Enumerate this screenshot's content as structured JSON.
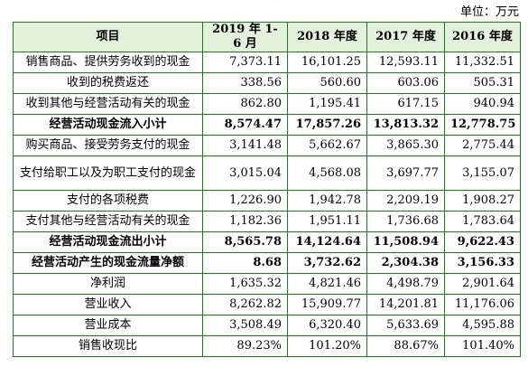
{
  "unit": "单位：万元",
  "headers": [
    "项目",
    "2019 年 1-6 月",
    "2018 年度",
    "2017 年度",
    "2016 年度"
  ],
  "rows": [
    {
      "label": "销售商品、提供劳务收到的现金",
      "values": [
        "7,373.11",
        "16,101.25",
        "12,593.11",
        "11,332.51"
      ],
      "bold": false
    },
    {
      "label": "收到的税费返还",
      "values": [
        "338.56",
        "560.60",
        "603.06",
        "505.31"
      ],
      "bold": false
    },
    {
      "label": "收到其他与经营活动有关的现金",
      "values": [
        "862.80",
        "1,195.41",
        "617.15",
        "940.94"
      ],
      "bold": false
    },
    {
      "label": "经营活动现金流入小计",
      "values": [
        "8,574.47",
        "17,857.26",
        "13,813.32",
        "12,778.75"
      ],
      "bold": true
    },
    {
      "label": "购买商品、接受劳务支付的现金",
      "values": [
        "3,141.48",
        "5,662.67",
        "3,865.30",
        "2,775.44"
      ],
      "bold": false
    },
    {
      "label": "支付给职工以及为职工支付的现金",
      "values": [
        "3,015.04",
        "4,568.08",
        "3,697.77",
        "3,155.07"
      ],
      "bold": false,
      "tall": true
    },
    {
      "label": "支付的各项税费",
      "values": [
        "1,226.90",
        "1,942.78",
        "2,209.19",
        "1,908.27"
      ],
      "bold": false
    },
    {
      "label": "支付其他与经营活动有关的现金",
      "values": [
        "1,182.36",
        "1,951.11",
        "1,736.68",
        "1,783.64"
      ],
      "bold": false
    },
    {
      "label": "经营活动现金流出小计",
      "values": [
        "8,565.78",
        "14,124.64",
        "11,508.94",
        "9,622.43"
      ],
      "bold": true
    },
    {
      "label": "经营活动产生的现金流量净额",
      "values": [
        "8.68",
        "3,732.62",
        "2,304.38",
        "3,156.33"
      ],
      "bold": true
    },
    {
      "label": "净利润",
      "values": [
        "1,635.32",
        "4,821.46",
        "4,498.79",
        "2,901.64"
      ],
      "bold": false
    },
    {
      "label": "营业收入",
      "values": [
        "8,262.82",
        "15,909.77",
        "14,201.81",
        "11,176.06"
      ],
      "bold": false
    },
    {
      "label": "营业成本",
      "values": [
        "3,508.49",
        "6,320.40",
        "5,633.69",
        "4,595.88"
      ],
      "bold": false
    },
    {
      "label": "销售收现比",
      "values": [
        "89.23%",
        "101.20%",
        "88.67%",
        "101.40%"
      ],
      "bold": false
    }
  ]
}
